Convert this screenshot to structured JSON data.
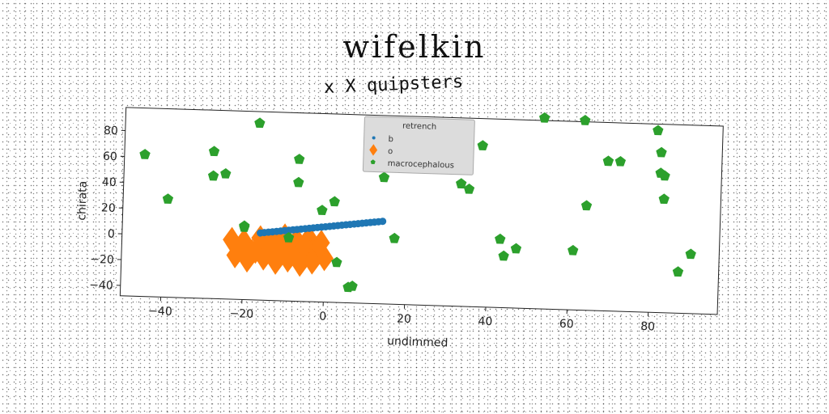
{
  "suptitle": "wifelkin",
  "chart_data": {
    "type": "scatter",
    "title": "x X quipsters",
    "xlabel": "undimmed",
    "ylabel": "chirata",
    "xlim": [
      -50,
      97
    ],
    "ylim": [
      -48,
      98
    ],
    "xticks": [
      -40,
      -20,
      0,
      20,
      40,
      60,
      80
    ],
    "yticks": [
      -40,
      -20,
      0,
      20,
      40,
      60,
      80
    ],
    "xtick_labels": [
      "−40",
      "−20",
      "0",
      "20",
      "40",
      "60",
      "80"
    ],
    "ytick_labels": [
      "−40",
      "−20",
      "0",
      "20",
      "40",
      "60",
      "80"
    ],
    "grid": false,
    "legend": {
      "title": "retrench",
      "placement": "top-center",
      "entries": [
        {
          "label": "b",
          "color": "#1f77b4",
          "marker": "circle"
        },
        {
          "label": "o",
          "color": "#ff7f0e",
          "marker": "diamond"
        },
        {
          "label": "macrocephalous",
          "color": "#2ca02c",
          "marker": "pentagon"
        }
      ]
    },
    "series": [
      {
        "name": "b",
        "color": "#1f77b4",
        "marker": "circle",
        "x": [
          -16.0,
          -15.0,
          -14.0,
          -13.0,
          -12.0,
          -11.0,
          -10.0,
          -9.0,
          -8.0,
          -7.0,
          -6.0,
          -5.0,
          -4.0,
          -3.0,
          -2.0,
          -1.0,
          0.0,
          1.0,
          2.0,
          3.0,
          4.0,
          5.0,
          6.0,
          7.0,
          8.0,
          9.0,
          10.0,
          11.0,
          12.0,
          13.0,
          14.0
        ],
        "y": [
          4.0,
          4.4,
          4.8,
          5.2,
          5.6,
          6.0,
          6.4,
          6.8,
          7.2,
          7.6,
          8.0,
          8.4,
          8.8,
          9.2,
          9.6,
          10.0,
          10.4,
          10.8,
          11.2,
          11.6,
          12.0,
          12.4,
          12.8,
          13.2,
          13.6,
          14.0,
          14.4,
          14.8,
          15.2,
          15.6,
          16.0
        ]
      },
      {
        "name": "o",
        "color": "#ff7f0e",
        "marker": "diamond",
        "x": [
          -23,
          -20,
          -16,
          -13,
          -10,
          -7,
          -4,
          -1,
          -22,
          -18,
          -15,
          -12,
          -9,
          -6,
          -3,
          0,
          -20,
          -17,
          -14,
          -11,
          -8,
          -5,
          -2,
          -19,
          -15,
          -12,
          -9,
          -6,
          -3
        ],
        "y": [
          -2,
          -3,
          0,
          -2,
          2,
          -1,
          1,
          -2,
          -14,
          -11,
          -9,
          -13,
          -10,
          -12,
          -9,
          -14,
          -7,
          -10,
          -6,
          -11,
          -8,
          -5,
          -9,
          -17,
          -15,
          -18,
          -16,
          -19,
          -17
        ]
      },
      {
        "name": "macrocephalous",
        "color": "#2ca02c",
        "marker": "pentagon",
        "x": [
          -45,
          -39,
          -28,
          -25,
          -28,
          -20,
          -17,
          -20,
          -7,
          -7,
          -1,
          -9,
          2,
          3,
          6,
          7,
          14,
          17,
          33,
          35,
          38,
          43,
          44,
          47,
          53,
          63,
          64,
          61,
          69,
          72,
          69,
          81,
          82,
          82,
          83,
          83,
          87,
          90
        ],
        "y": [
          62,
          28,
          47,
          49,
          66,
          9,
          89,
          8,
          62,
          44,
          23,
          1,
          30,
          -17,
          -36,
          -35,
          50,
          3,
          47,
          43,
          77,
          5,
          -8,
          -2,
          100,
          99,
          33,
          -2,
          68,
          68,
          68,
          93,
          76,
          60,
          58,
          40,
          -16,
          -2
        ]
      }
    ]
  }
}
